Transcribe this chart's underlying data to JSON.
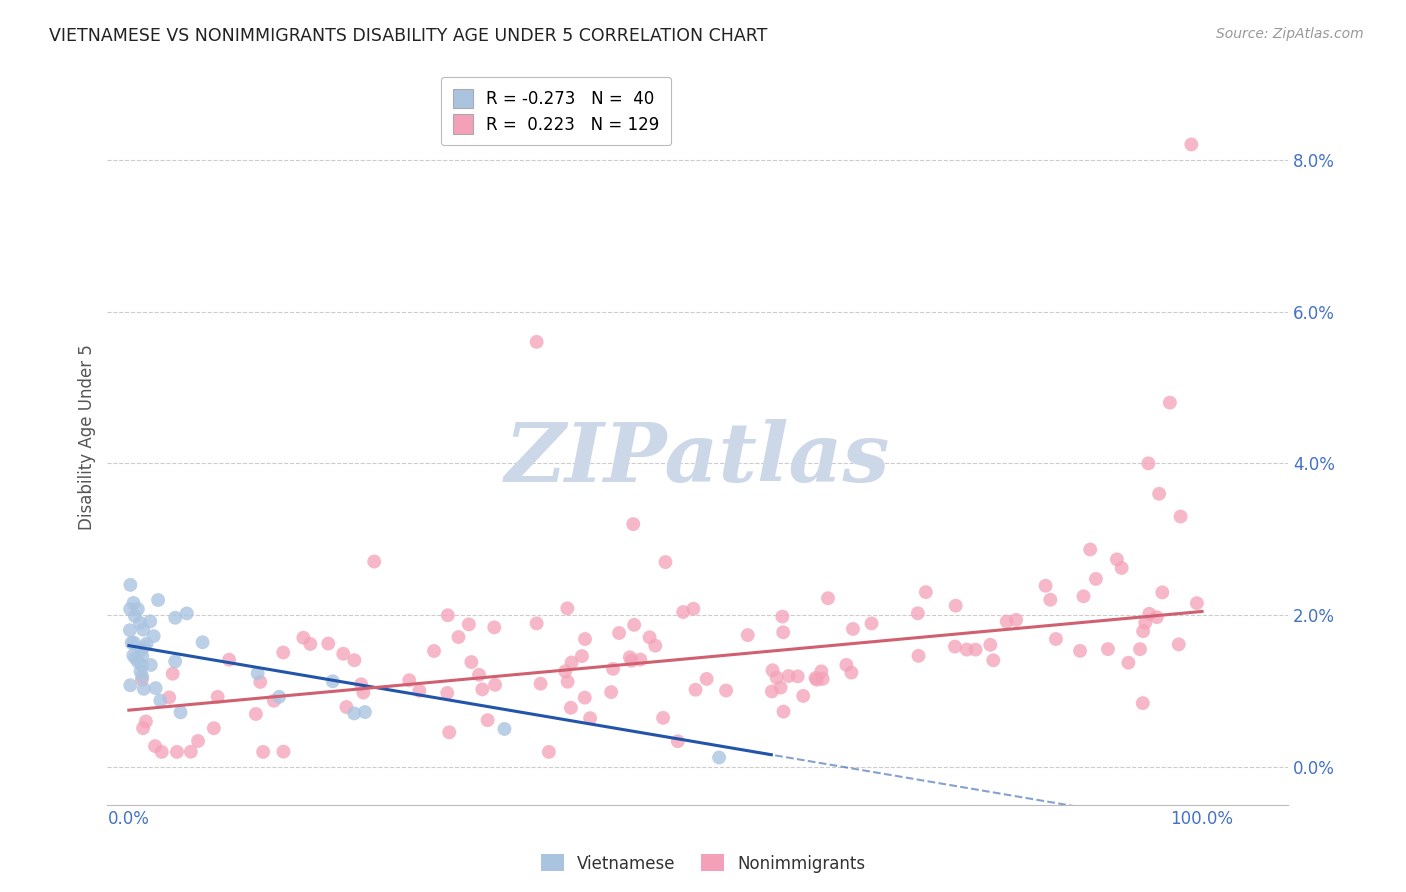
{
  "title": "VIETNAMESE VS NONIMMIGRANTS DISABILITY AGE UNDER 5 CORRELATION CHART",
  "source": "Source: ZipAtlas.com",
  "ylabel_label": "Disability Age Under 5",
  "x_ticks": [
    0.0,
    0.2,
    0.4,
    0.6,
    0.8,
    1.0
  ],
  "x_tick_labels": [
    "0.0%",
    "",
    "",
    "",
    "",
    "100.0%"
  ],
  "y_tick_labels_right": [
    "0.0%",
    "2.0%",
    "4.0%",
    "6.0%",
    "8.0%"
  ],
  "y_ticks": [
    0.0,
    0.02,
    0.04,
    0.06,
    0.08
  ],
  "xlim": [
    -0.02,
    1.08
  ],
  "ylim": [
    -0.005,
    0.092
  ],
  "watermark_text": "ZIPatlas",
  "watermark_color": "#ccd8e8",
  "background_color": "#ffffff",
  "grid_color": "#cccccc",
  "title_color": "#222222",
  "tick_color": "#4472c4",
  "viet_color": "#aac4e0",
  "nonimm_color": "#f4a0b8",
  "viet_line_color": "#2255aa",
  "nonimm_line_color": "#d06070",
  "viet_intercept": 0.016,
  "viet_slope": -0.024,
  "nonimm_intercept": 0.0075,
  "nonimm_slope": 0.013,
  "legend_viet_label": "R = -0.273   N =  40",
  "legend_nonimm_label": "R =  0.223   N = 129",
  "bottom_legend_viet": "Vietnamese",
  "bottom_legend_nonimm": "Nonimmigrants"
}
